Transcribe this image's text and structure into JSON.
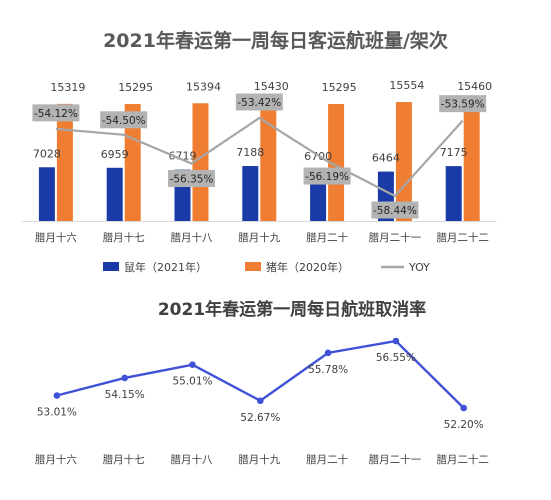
{
  "chart_data": [
    {
      "type": "bar",
      "title": "2021年春运第一周每日客运航班量/架次",
      "categories": [
        "腊月十六",
        "腊月十七",
        "腊月十八",
        "腊月十九",
        "腊月二十",
        "腊月二十一",
        "腊月二十二"
      ],
      "series": [
        {
          "name": "鼠年（2021年）",
          "type": "bar",
          "color": "#1a3aa8",
          "values": [
            7028,
            6959,
            6719,
            7188,
            6700,
            6464,
            7175
          ]
        },
        {
          "name": "猪年（2020年）",
          "type": "bar",
          "color": "#ef7d32",
          "values": [
            15319,
            15295,
            15394,
            15430,
            15295,
            15554,
            15460
          ]
        },
        {
          "name": "YOY",
          "type": "line",
          "color": "#a6a6a6",
          "values": [
            -54.12,
            -54.5,
            -56.35,
            -53.42,
            -56.19,
            -58.44,
            -53.59
          ],
          "labels": [
            "-54.12%",
            "-54.50%",
            "-56.35%",
            "-53.42%",
            "-56.19%",
            "-58.44%",
            "-53.59%"
          ]
        }
      ],
      "legend_position": "bottom"
    },
    {
      "type": "line",
      "title": "2021年春运第一周每日航班取消率",
      "categories": [
        "腊月十六",
        "腊月十七",
        "腊月十八",
        "腊月十九",
        "腊月二十",
        "腊月二十一",
        "腊月二十二"
      ],
      "series": [
        {
          "name": "",
          "color": "#3f51d6",
          "values": [
            53.01,
            54.15,
            55.01,
            52.67,
            55.78,
            56.55,
            52.2
          ],
          "labels": [
            "53.01%",
            "54.15%",
            "55.01%",
            "52.67%",
            "55.78%",
            "56.55%",
            "52.20%"
          ]
        }
      ]
    }
  ]
}
